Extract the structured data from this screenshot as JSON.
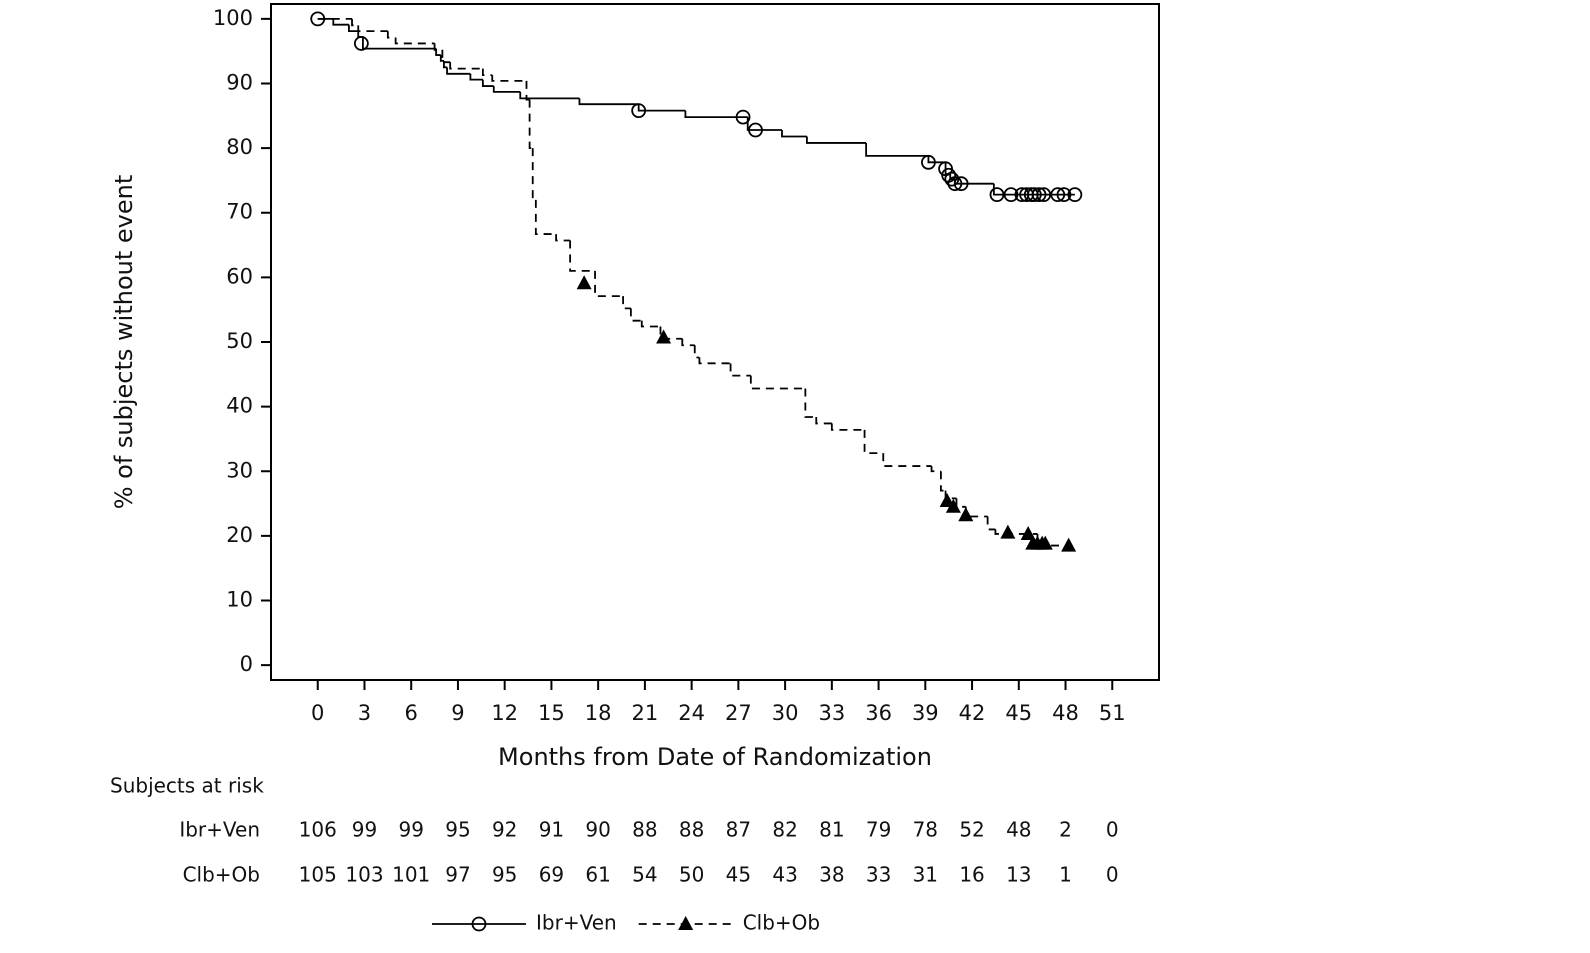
{
  "chart_data": {
    "type": "step",
    "xlabel": "Months from Date of Randomization",
    "ylabel": "% of subjects without event",
    "xlim": [
      -3,
      54
    ],
    "ylim": [
      -2.3,
      102.3
    ],
    "xticks": [
      0,
      3,
      6,
      9,
      12,
      15,
      18,
      21,
      24,
      27,
      30,
      33,
      36,
      39,
      42,
      45,
      48,
      51
    ],
    "yticks": [
      0,
      10,
      20,
      30,
      40,
      50,
      60,
      70,
      80,
      90,
      100
    ],
    "series": [
      {
        "name": "Ibr+Ven",
        "color": "#000000",
        "dash": "solid",
        "marker": "circle",
        "x": [
          0,
          1.0,
          2.0,
          2.6,
          2.9,
          7.6,
          7.9,
          8.1,
          8.3,
          9.8,
          10.6,
          11.3,
          13.0,
          16.8,
          20.6,
          23.6,
          27.6,
          29.8,
          31.4,
          35.2,
          39.2,
          40.3,
          40.6,
          40.9,
          43.4,
          48.6
        ],
        "values": [
          100,
          99.1,
          98.1,
          97.2,
          95.4,
          94.4,
          93.5,
          92.5,
          91.5,
          90.6,
          89.6,
          88.7,
          87.7,
          86.8,
          85.8,
          84.8,
          82.8,
          81.8,
          80.8,
          78.8,
          77.8,
          76.0,
          75.2,
          74.5,
          72.8,
          72.8
        ],
        "censored": {
          "x": [
            0,
            2.8,
            20.6,
            27.3,
            28.1,
            39.2,
            40.3,
            40.5,
            40.7,
            40.9,
            41.3,
            43.6,
            44.5,
            45.2,
            45.5,
            45.8,
            46.0,
            46.3,
            46.6,
            47.5,
            47.9,
            48.6
          ],
          "values": [
            100,
            96.2,
            85.8,
            84.8,
            82.8,
            77.8,
            76.8,
            75.8,
            75.2,
            74.5,
            74.5,
            72.8,
            72.8,
            72.8,
            72.8,
            72.8,
            72.8,
            72.8,
            72.8,
            72.8,
            72.8,
            72.8
          ]
        }
      },
      {
        "name": "Clb+Ob",
        "color": "#000000",
        "dash": "dashed",
        "marker": "triangle",
        "x": [
          0,
          2.2,
          2.6,
          4.5,
          5.0,
          7.5,
          8.0,
          8.5,
          10.6,
          11.2,
          13.4,
          13.6,
          13.8,
          14.0,
          15.3,
          16.2,
          17.8,
          19.6,
          20.1,
          20.8,
          22.0,
          23.4,
          24.2,
          24.5,
          26.5,
          27.8,
          31.3,
          32.0,
          33.0,
          35.1,
          36.3,
          39.4,
          40.0,
          40.3,
          41.0,
          41.6,
          43.0,
          43.5,
          46.2,
          46.5,
          48.2
        ],
        "values": [
          100,
          99.0,
          98.1,
          97.1,
          96.2,
          95.2,
          93.3,
          92.3,
          91.3,
          90.4,
          87.5,
          80.0,
          72.0,
          66.7,
          65.7,
          61.0,
          57.1,
          55.2,
          53.3,
          52.4,
          50.5,
          49.5,
          47.6,
          46.7,
          44.8,
          42.8,
          38.4,
          37.4,
          36.4,
          32.8,
          30.8,
          30.0,
          27.0,
          25.8,
          24.5,
          23.0,
          21.0,
          20.3,
          19.3,
          18.5,
          18.5
        ],
        "censored": {
          "x": [
            17.1,
            22.2,
            40.4,
            40.8,
            41.6,
            44.3,
            45.6,
            45.9,
            46.2,
            46.5,
            46.7,
            48.2
          ],
          "values": [
            59.1,
            50.7,
            25.4,
            24.5,
            23.2,
            20.5,
            20.3,
            18.8,
            18.8,
            18.8,
            18.8,
            18.5
          ]
        }
      }
    ],
    "risk_table": {
      "title": "Subjects at risk",
      "rows": [
        {
          "name": "Ibr+Ven",
          "counts": [
            106,
            99,
            99,
            95,
            92,
            91,
            90,
            88,
            88,
            87,
            82,
            81,
            79,
            78,
            52,
            48,
            2,
            0
          ]
        },
        {
          "name": "Clb+Ob",
          "counts": [
            105,
            103,
            101,
            97,
            95,
            69,
            61,
            54,
            50,
            45,
            43,
            38,
            33,
            31,
            16,
            13,
            1,
            0
          ]
        }
      ]
    }
  }
}
